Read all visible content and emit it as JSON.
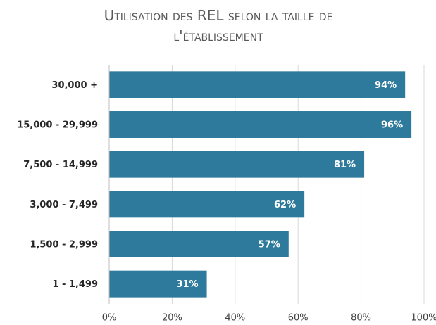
{
  "chart_data": {
    "type": "bar",
    "orientation": "horizontal",
    "title": "Utilisation des REL selon la taille de l'établissement",
    "categories": [
      "30,000 +",
      "15,000 - 29,999",
      "7,500 - 14,999",
      "3,000 - 7,499",
      "1,500 - 2,999",
      "1 - 1,499"
    ],
    "values": [
      94,
      96,
      81,
      62,
      57,
      31
    ],
    "value_labels": [
      "94%",
      "96%",
      "81%",
      "62%",
      "57%",
      "31%"
    ],
    "color": "#2e7a9c",
    "xlim": [
      0,
      100
    ],
    "xticks": [
      {
        "value": 0,
        "label": "0%"
      },
      {
        "value": 20,
        "label": "20%"
      },
      {
        "value": 40,
        "label": "40%"
      },
      {
        "value": 60,
        "label": "60%"
      },
      {
        "value": 80,
        "label": "80%"
      },
      {
        "value": 100,
        "label": "100%"
      }
    ],
    "grid": true
  }
}
